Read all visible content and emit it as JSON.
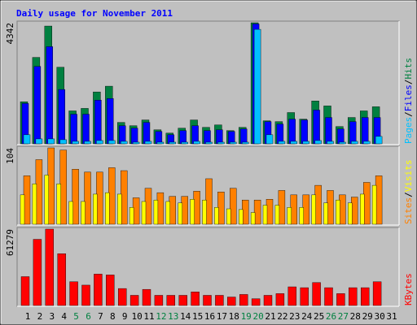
{
  "title": "Daily usage for November 2011",
  "separator": "/",
  "chart_data": [
    {
      "type": "bar",
      "ylim": [
        0,
        4342
      ],
      "yticks": [
        4342
      ],
      "series": [
        {
          "name": "Pages",
          "color": "#00c0ff",
          "values": [
            325,
            177,
            177,
            148,
            89,
            89,
            118,
            118,
            89,
            59,
            89,
            59,
            59,
            59,
            89,
            59,
            59,
            59,
            59,
            4106,
            325,
            89,
            89,
            89,
            118,
            89,
            59,
            89,
            89,
            266,
            null
          ]
        },
        {
          "name": "Files",
          "color": "#0000ff",
          "values": [
            1447,
            2776,
            3485,
            1949,
            1063,
            1063,
            1565,
            1624,
            650,
            561,
            768,
            443,
            325,
            473,
            650,
            473,
            502,
            443,
            532,
            4300,
            797,
            709,
            886,
            856,
            1211,
            945,
            532,
            797,
            945,
            945,
            null
          ]
        },
        {
          "name": "Hits",
          "color": "#008040",
          "values": [
            1507,
            3100,
            4224,
            2747,
            1181,
            1270,
            1861,
            2067,
            768,
            650,
            856,
            502,
            384,
            561,
            856,
            591,
            679,
            473,
            591,
            4342,
            827,
            797,
            1122,
            886,
            1536,
            1359,
            620,
            945,
            1181,
            1329,
            null
          ]
        }
      ]
    },
    {
      "type": "bar",
      "ylim": [
        0,
        104
      ],
      "yticks": [
        104
      ],
      "series": [
        {
          "name": "Sites",
          "color": "#ff8000",
          "values": [
            66,
            88,
            104,
            101,
            75,
            71,
            71,
            77,
            73,
            36,
            49,
            43,
            38,
            38,
            45,
            62,
            44,
            49,
            33,
            33,
            34,
            46,
            40,
            40,
            53,
            46,
            40,
            37,
            57,
            66,
            null
          ]
        },
        {
          "name": "Visits",
          "color": "#ffff00",
          "values": [
            40,
            55,
            67,
            55,
            31,
            31,
            41,
            43,
            41,
            23,
            31,
            33,
            31,
            29,
            34,
            33,
            23,
            21,
            20,
            16,
            26,
            26,
            23,
            23,
            40,
            29,
            33,
            29,
            41,
            53,
            null
          ]
        }
      ]
    },
    {
      "type": "bar",
      "ylim": [
        0,
        61279
      ],
      "yticks": [
        61279
      ],
      "categories": [
        "1",
        "2",
        "3",
        "4",
        "5",
        "6",
        "7",
        "8",
        "9",
        "10",
        "11",
        "12",
        "13",
        "14",
        "15",
        "16",
        "17",
        "18",
        "19",
        "20",
        "21",
        "22",
        "23",
        "24",
        "25",
        "26",
        "27",
        "28",
        "29",
        "30",
        "31"
      ],
      "category_label_colors": [
        "#000000",
        "#000000",
        "#000000",
        "#000000",
        "#008040",
        "#008040",
        "#000000",
        "#000000",
        "#000000",
        "#000000",
        "#000000",
        "#008040",
        "#008040",
        "#000000",
        "#000000",
        "#000000",
        "#000000",
        "#000000",
        "#008040",
        "#008040",
        "#000000",
        "#000000",
        "#000000",
        "#000000",
        "#000000",
        "#008040",
        "#008040",
        "#000000",
        "#000000",
        "#000000",
        "#000000"
      ],
      "series": [
        {
          "name": "KBytes",
          "color": "#ff0000",
          "values": [
            23149,
            53108,
            61279,
            41534,
            19065,
            16341,
            25192,
            24512,
            13618,
            8170,
            12937,
            8170,
            8170,
            8170,
            10894,
            8170,
            8170,
            6809,
            8851,
            5447,
            8170,
            9532,
            14979,
            14298,
            18384,
            14298,
            9532,
            14298,
            14298,
            19065,
            null
          ]
        }
      ]
    }
  ]
}
